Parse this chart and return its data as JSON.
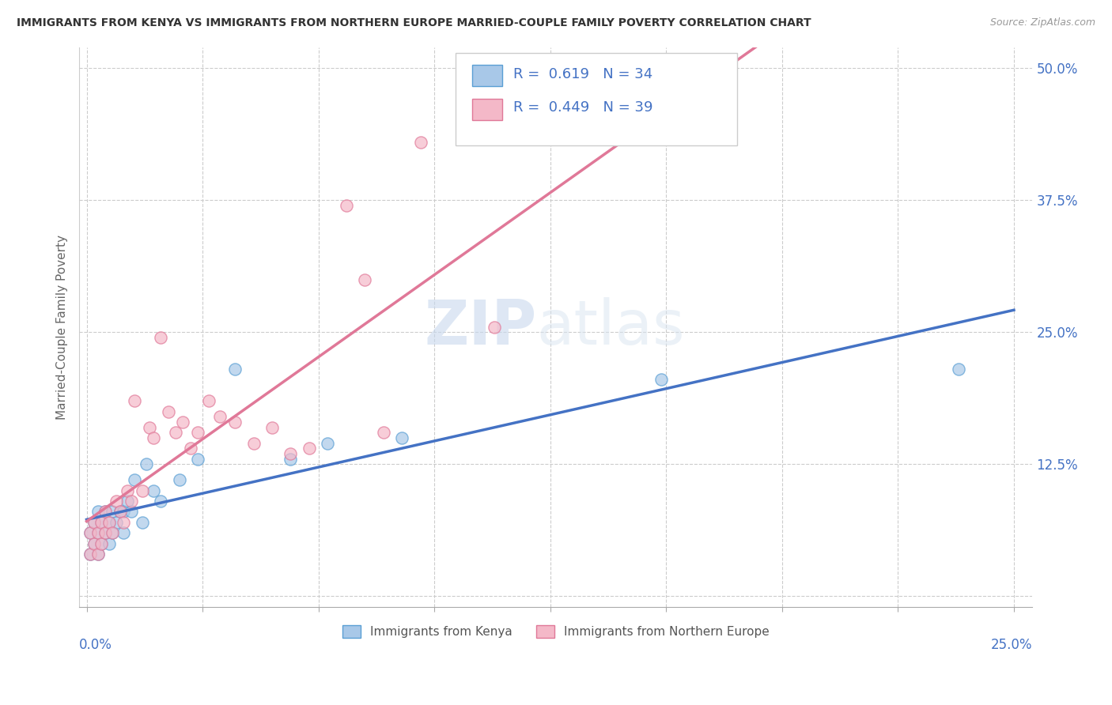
{
  "title": "IMMIGRANTS FROM KENYA VS IMMIGRANTS FROM NORTHERN EUROPE MARRIED-COUPLE FAMILY POVERTY CORRELATION CHART",
  "source": "Source: ZipAtlas.com",
  "ylabel": "Married-Couple Family Poverty",
  "y_ticks": [
    0.0,
    0.125,
    0.25,
    0.375,
    0.5
  ],
  "y_tick_labels": [
    "",
    "12.5%",
    "25.0%",
    "37.5%",
    "50.0%"
  ],
  "x_ticks": [
    0.0,
    0.03125,
    0.0625,
    0.09375,
    0.125,
    0.15625,
    0.1875,
    0.21875,
    0.25
  ],
  "xlim": [
    -0.002,
    0.255
  ],
  "ylim": [
    -0.01,
    0.52
  ],
  "kenya_color": "#a8c8e8",
  "kenya_edge": "#5a9fd4",
  "northern_color": "#f4b8c8",
  "northern_edge": "#e07898",
  "kenya_line_color": "#4472c4",
  "northern_line_color": "#e07898",
  "kenya_R": 0.619,
  "kenya_N": 34,
  "northern_R": 0.449,
  "northern_N": 39,
  "legend_label_kenya": "Immigrants from Kenya",
  "legend_label_northern": "Immigrants from Northern Europe",
  "watermark_zip": "ZIP",
  "watermark_atlas": "atlas",
  "background_color": "#ffffff",
  "grid_color": "#cccccc",
  "kenya_x": [
    0.001,
    0.001,
    0.002,
    0.002,
    0.003,
    0.003,
    0.003,
    0.004,
    0.004,
    0.005,
    0.005,
    0.006,
    0.006,
    0.007,
    0.007,
    0.008,
    0.009,
    0.01,
    0.01,
    0.011,
    0.012,
    0.013,
    0.015,
    0.016,
    0.018,
    0.02,
    0.025,
    0.03,
    0.04,
    0.055,
    0.065,
    0.085,
    0.155,
    0.235
  ],
  "kenya_y": [
    0.04,
    0.06,
    0.05,
    0.07,
    0.04,
    0.06,
    0.08,
    0.05,
    0.07,
    0.06,
    0.08,
    0.05,
    0.07,
    0.06,
    0.08,
    0.07,
    0.08,
    0.06,
    0.08,
    0.09,
    0.08,
    0.11,
    0.07,
    0.125,
    0.1,
    0.09,
    0.11,
    0.13,
    0.215,
    0.13,
    0.145,
    0.15,
    0.205,
    0.215
  ],
  "northern_x": [
    0.001,
    0.001,
    0.002,
    0.002,
    0.003,
    0.003,
    0.004,
    0.004,
    0.005,
    0.005,
    0.006,
    0.007,
    0.008,
    0.009,
    0.01,
    0.011,
    0.012,
    0.013,
    0.015,
    0.017,
    0.018,
    0.02,
    0.022,
    0.024,
    0.026,
    0.028,
    0.03,
    0.033,
    0.036,
    0.04,
    0.045,
    0.05,
    0.055,
    0.06,
    0.07,
    0.075,
    0.08,
    0.09,
    0.11
  ],
  "northern_y": [
    0.04,
    0.06,
    0.05,
    0.07,
    0.04,
    0.06,
    0.05,
    0.07,
    0.06,
    0.08,
    0.07,
    0.06,
    0.09,
    0.08,
    0.07,
    0.1,
    0.09,
    0.185,
    0.1,
    0.16,
    0.15,
    0.245,
    0.175,
    0.155,
    0.165,
    0.14,
    0.155,
    0.185,
    0.17,
    0.165,
    0.145,
    0.16,
    0.135,
    0.14,
    0.37,
    0.3,
    0.155,
    0.43,
    0.255
  ]
}
